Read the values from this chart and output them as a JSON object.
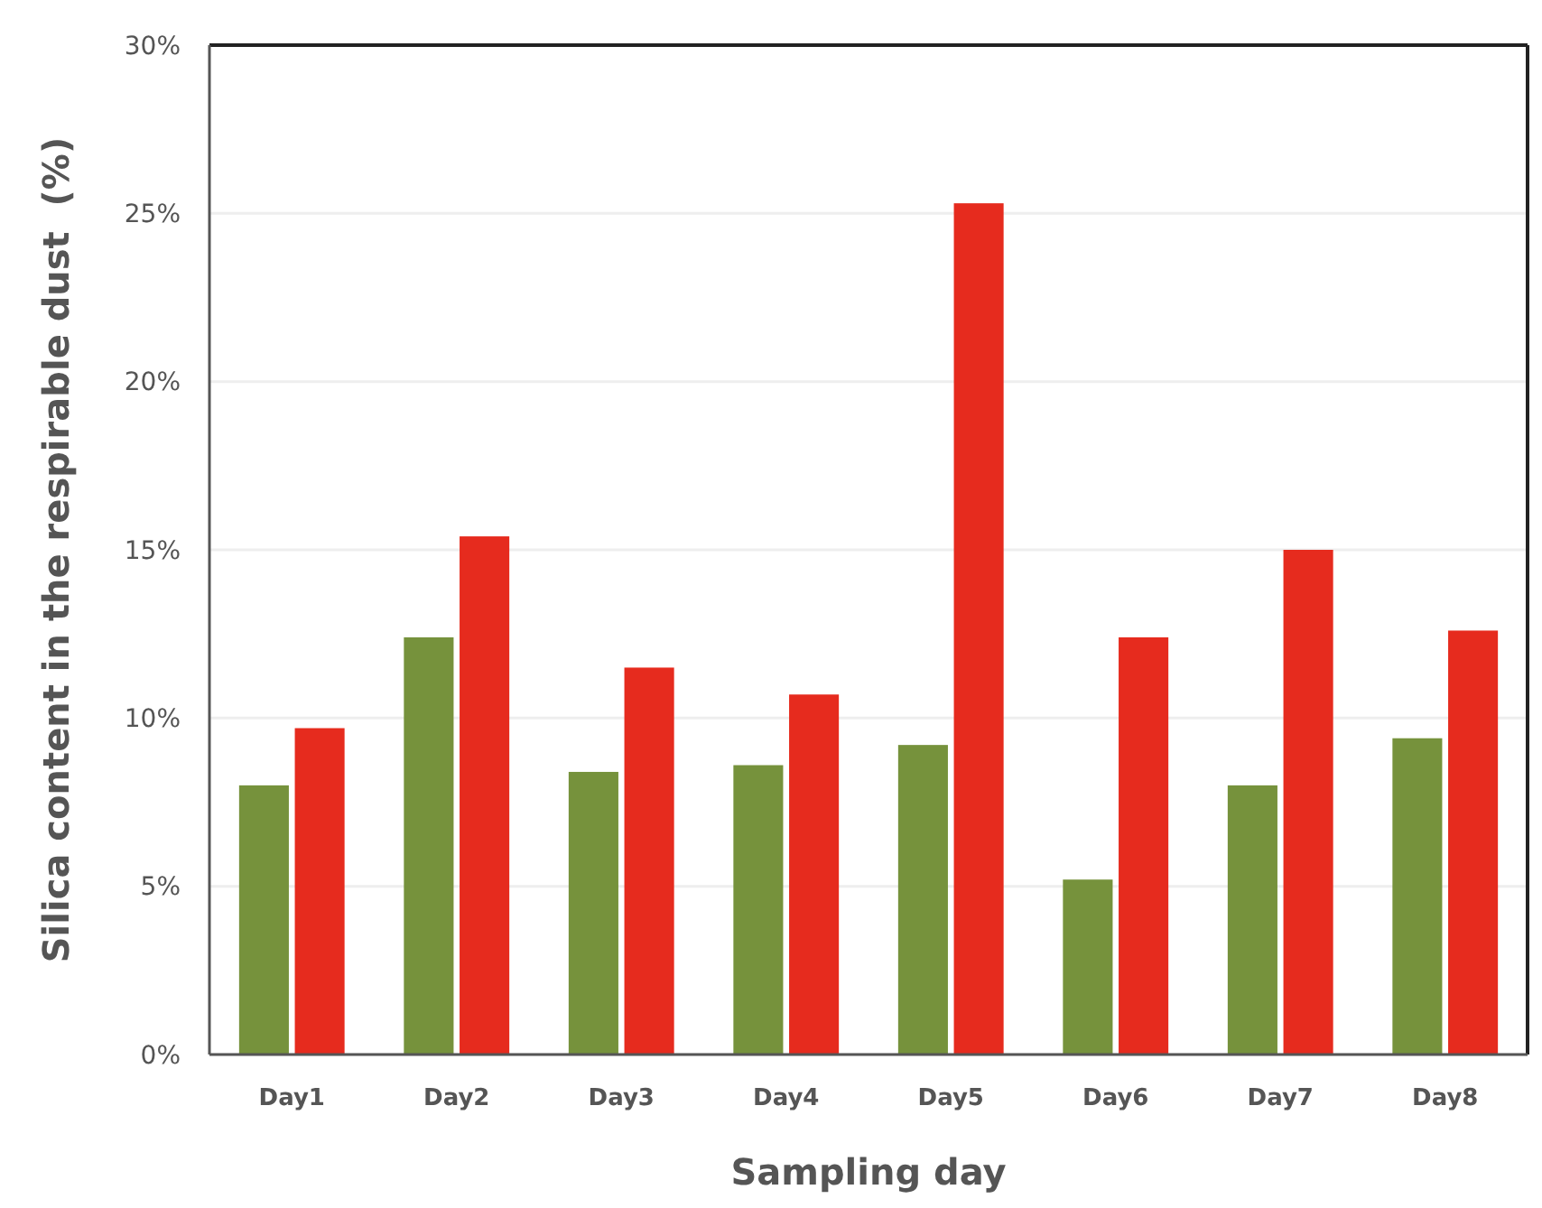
{
  "chart_data": {
    "type": "bar",
    "xlabel": "Sampling day",
    "ylabel": "Silica content in the respirable dust  (%)",
    "categories": [
      "Day1",
      "Day2",
      "Day3",
      "Day4",
      "Day5",
      "Day6",
      "Day7",
      "Day8"
    ],
    "series": [
      {
        "color": "#76923c",
        "values": [
          8.0,
          12.4,
          8.4,
          8.6,
          9.2,
          5.2,
          8.0,
          9.4
        ]
      },
      {
        "color": "#e62b1e",
        "values": [
          9.7,
          15.4,
          11.5,
          10.7,
          25.3,
          12.4,
          15.0,
          12.6
        ]
      }
    ],
    "ylim": [
      0,
      30
    ],
    "yticks": [
      {
        "value": 0,
        "label": "0%"
      },
      {
        "value": 5,
        "label": "5%"
      },
      {
        "value": 10,
        "label": "10%"
      },
      {
        "value": 15,
        "label": "15%"
      },
      {
        "value": 20,
        "label": "20%"
      },
      {
        "value": 25,
        "label": "25%"
      },
      {
        "value": 30,
        "label": "30%"
      }
    ],
    "grid": "y"
  }
}
